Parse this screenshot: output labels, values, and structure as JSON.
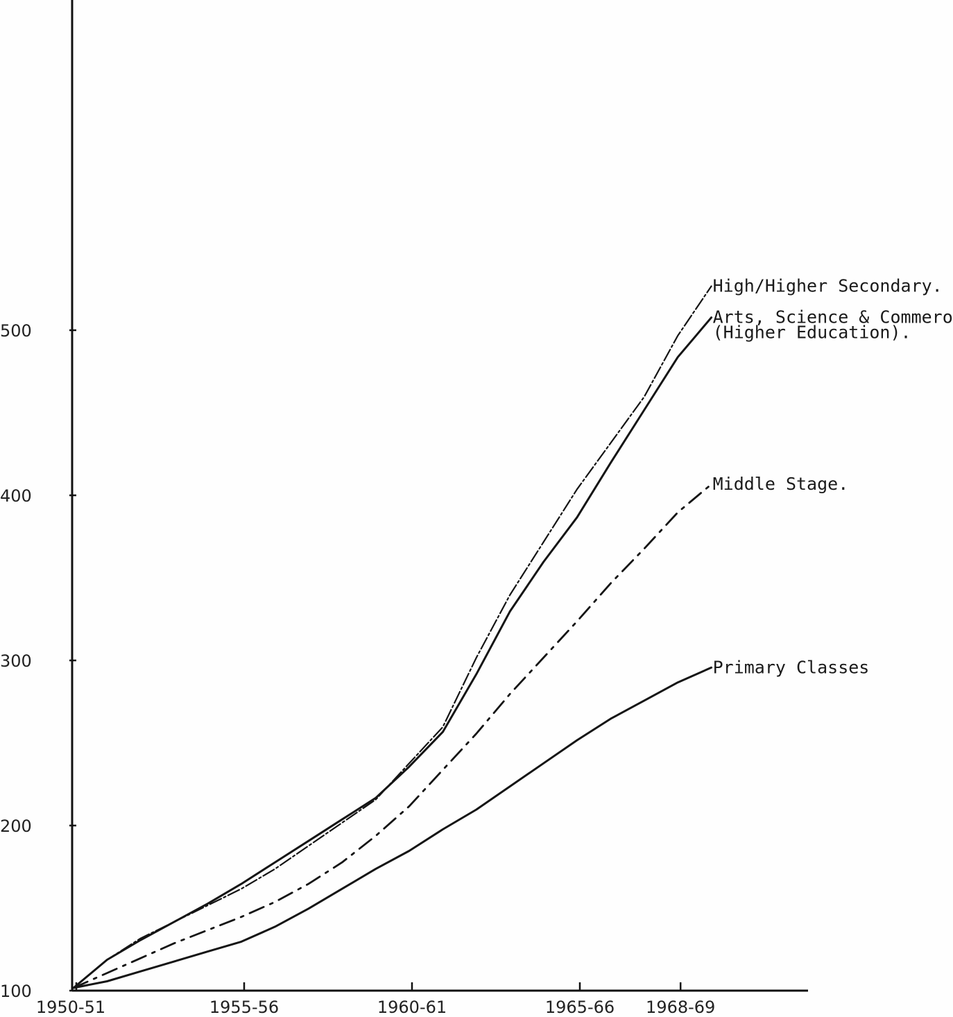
{
  "chart_data": {
    "type": "line",
    "title": "",
    "xlabel": "",
    "ylabel": "",
    "categories": [
      "1950-51",
      "1955-56",
      "1960-61",
      "1965-66",
      "1968-69"
    ],
    "x_tick_labels": [
      "1950-51",
      "1955-56",
      "1960-61",
      "1965-66",
      "1968-69"
    ],
    "y_tick_labels": [
      "100",
      "200",
      "300",
      "400",
      "500"
    ],
    "y_ticks": [
      100,
      200,
      300,
      400,
      500
    ],
    "ylim": [
      100,
      630
    ],
    "xlim": [
      1950,
      1972.5
    ],
    "grid": false,
    "legend": "labels at line ends",
    "series": [
      {
        "name": "High/Higher Secondary.",
        "name_lines": [
          "High/Higher Secondary."
        ],
        "style": "dashed",
        "x": [
          1950,
          1951,
          1952,
          1953,
          1954,
          1955,
          1956,
          1957,
          1958,
          1959,
          1960,
          1961,
          1962,
          1963,
          1964,
          1965,
          1966,
          1967,
          1968,
          1968.5,
          1969
        ],
        "values": [
          100,
          117,
          130,
          140,
          150,
          160,
          172,
          186,
          200,
          214,
          236,
          258,
          300,
          338,
          370,
          402,
          430,
          458,
          495,
          510,
          525
        ]
      },
      {
        "name": "Arts, Science & Commeroe (Higher Education).",
        "name_lines": [
          "Arts, Science & Commeroe",
          "(Higher Education)."
        ],
        "style": "solid",
        "x": [
          1950,
          1951,
          1952,
          1953,
          1954,
          1955,
          1956,
          1957,
          1958,
          1959,
          1960,
          1961,
          1962,
          1963,
          1964,
          1965,
          1966,
          1967,
          1968,
          1968.5,
          1969
        ],
        "values": [
          100,
          117,
          129,
          140,
          151,
          163,
          176,
          189,
          202,
          215,
          234,
          255,
          290,
          328,
          358,
          385,
          418,
          450,
          482,
          494,
          506
        ]
      },
      {
        "name": "Middle Stage.",
        "name_lines": [
          "Middle Stage."
        ],
        "style": "dash-dot",
        "x": [
          1950,
          1951,
          1952,
          1953,
          1954,
          1955,
          1956,
          1957,
          1958,
          1959,
          1960,
          1961,
          1962,
          1963,
          1964,
          1965,
          1966,
          1967,
          1968,
          1969
        ],
        "values": [
          100,
          109,
          118,
          127,
          135,
          143,
          152,
          163,
          176,
          192,
          210,
          232,
          254,
          278,
          300,
          322,
          345,
          366,
          388,
          405
        ]
      },
      {
        "name": "Primary Classes",
        "name_lines": [
          "Primary Classes"
        ],
        "style": "solid",
        "x": [
          1950,
          1951,
          1952,
          1953,
          1954,
          1955,
          1956,
          1957,
          1958,
          1959,
          1960,
          1961,
          1962,
          1963,
          1964,
          1965,
          1966,
          1967,
          1968,
          1969
        ],
        "values": [
          100,
          104,
          110,
          116,
          122,
          128,
          137,
          148,
          160,
          172,
          183,
          196,
          208,
          222,
          236,
          250,
          263,
          274,
          285,
          294
        ]
      }
    ]
  }
}
